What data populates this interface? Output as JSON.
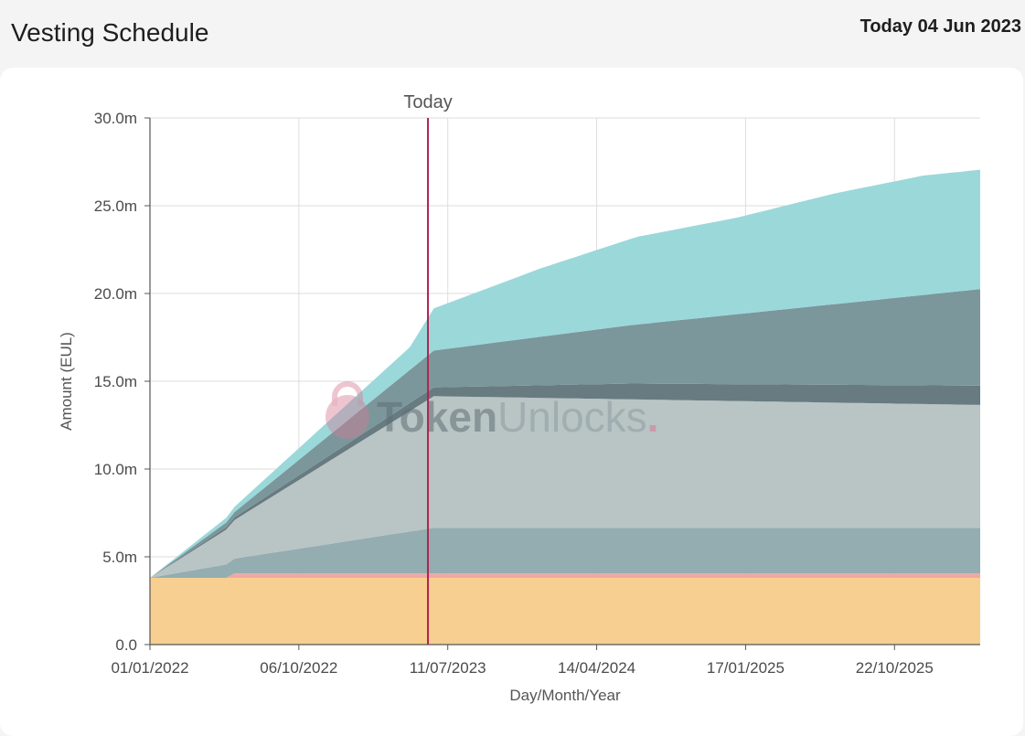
{
  "header": {
    "title": "Vesting Schedule",
    "date_label": "Today 04 Jun 2023"
  },
  "watermark": {
    "brand_bold": "Token",
    "brand_light": "Unlocks",
    "brand_dot": "."
  },
  "chart_data": {
    "type": "area",
    "stacked": true,
    "x_start": "01/01/2022",
    "x_end": "31/03/2026",
    "x_tick_labels": [
      "01/01/2022",
      "06/10/2022",
      "11/07/2023",
      "14/04/2024",
      "17/01/2025",
      "22/10/2025"
    ],
    "y_ticks": [
      0,
      5,
      10,
      15,
      20,
      25,
      30
    ],
    "y_tick_labels": [
      "0.0",
      "5.0m",
      "10.0m",
      "15.0m",
      "20.0m",
      "25.0m",
      "30.0m"
    ],
    "ylim": [
      0,
      30
    ],
    "xlabel": "Day/Month/Year",
    "ylabel": "Amount (EUL)",
    "grid": true,
    "marker": {
      "label": "Today",
      "date": "04/06/2023",
      "color": "#b0244f"
    },
    "series": [
      {
        "color": "#f7cf90",
        "points": [
          [
            "01/01/2022",
            3.8
          ],
          [
            "31/03/2026",
            3.8
          ]
        ]
      },
      {
        "color": "#f1a7a4",
        "points": [
          [
            "01/01/2022",
            0
          ],
          [
            "08/06/2022",
            0
          ],
          [
            "08/06/2022",
            0.25
          ],
          [
            "31/03/2026",
            0.25
          ]
        ]
      },
      {
        "color": "#93adb1",
        "points": [
          [
            "01/01/2022",
            0
          ],
          [
            "08/06/2022",
            0.85
          ],
          [
            "15/06/2023",
            2.6
          ],
          [
            "31/03/2026",
            2.6
          ]
        ]
      },
      {
        "color": "#b9c4c4",
        "points": [
          [
            "01/01/2022",
            0
          ],
          [
            "08/06/2022",
            2.2
          ],
          [
            "15/06/2023",
            7.5
          ],
          [
            "31/03/2026",
            7.0
          ]
        ]
      },
      {
        "color": "#677b80",
        "points": [
          [
            "01/01/2022",
            0
          ],
          [
            "08/06/2022",
            0.15
          ],
          [
            "15/06/2023",
            0.5
          ],
          [
            "15/06/2024",
            0.9
          ],
          [
            "31/03/2026",
            1.1
          ]
        ]
      },
      {
        "color": "#7b979c",
        "points": [
          [
            "01/01/2022",
            0
          ],
          [
            "08/06/2022",
            0.3
          ],
          [
            "15/06/2023",
            2.1
          ],
          [
            "31/03/2026",
            5.5
          ]
        ]
      },
      {
        "color": "#9bd8da",
        "points": [
          [
            "01/01/2022",
            0
          ],
          [
            "08/06/2022",
            0.3
          ],
          [
            "01/05/2023",
            1.3
          ],
          [
            "15/06/2023",
            2.4
          ],
          [
            "01/01/2024",
            3.9
          ],
          [
            "01/07/2024",
            5.0
          ],
          [
            "01/01/2025",
            5.5
          ],
          [
            "01/07/2025",
            6.3
          ],
          [
            "15/12/2025",
            6.8
          ],
          [
            "31/03/2026",
            6.8
          ]
        ]
      }
    ]
  }
}
